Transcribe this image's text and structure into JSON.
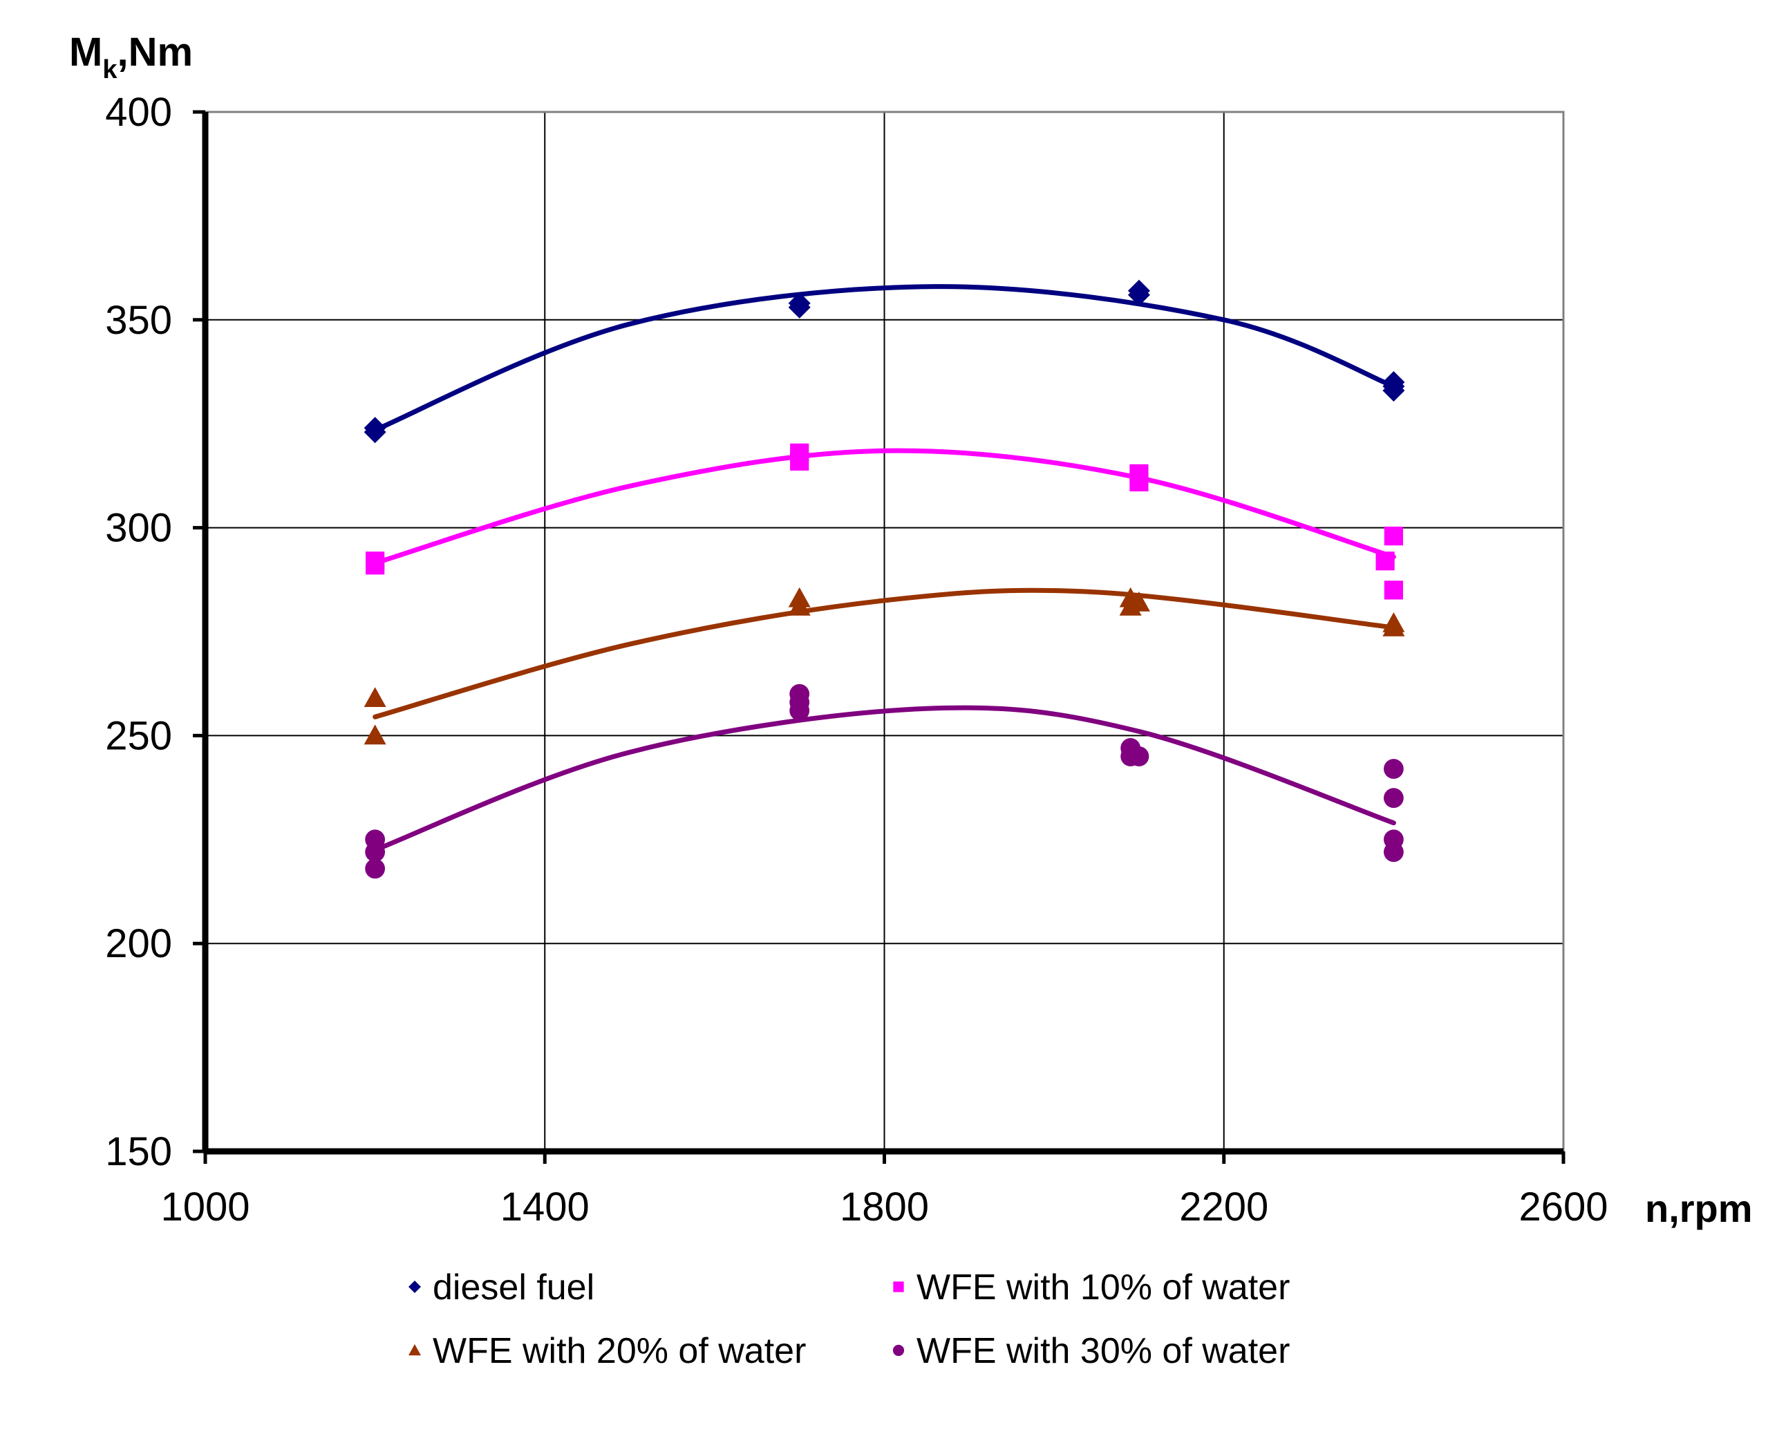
{
  "chart_data": {
    "type": "scatter",
    "ylabel_main": "M",
    "ylabel_sub": "k",
    "ylabel_rest": ",Nm",
    "xlabel": "n,rpm",
    "xlim": [
      1000,
      2600
    ],
    "ylim": [
      150,
      400
    ],
    "x_ticks": [
      "1000",
      "1400",
      "1800",
      "2200",
      "2600"
    ],
    "x_tick_values": [
      1000,
      1400,
      1800,
      2200,
      2600
    ],
    "y_ticks": [
      "400",
      "350",
      "300",
      "250",
      "200",
      "150"
    ],
    "y_tick_values": [
      400,
      350,
      300,
      250,
      200,
      150
    ],
    "grid": true,
    "legend_position": "bottom",
    "series": [
      {
        "name": "diesel fuel",
        "marker": "diamond",
        "color": "#000080",
        "points": [
          [
            1200,
            324
          ],
          [
            1200,
            323
          ],
          [
            1700,
            354
          ],
          [
            1700,
            353
          ],
          [
            2100,
            357
          ],
          [
            2100,
            356
          ],
          [
            2400,
            335
          ],
          [
            2400,
            334
          ],
          [
            2400,
            333
          ]
        ],
        "trend": [
          [
            1200,
            323.5
          ],
          [
            1500,
            349
          ],
          [
            1860,
            358
          ],
          [
            2200,
            350
          ],
          [
            2400,
            334
          ]
        ]
      },
      {
        "name": "WFE with 10% of water",
        "marker": "square",
        "color": "#FF00FF",
        "points": [
          [
            1200,
            292
          ],
          [
            1200,
            291
          ],
          [
            1700,
            318
          ],
          [
            1700,
            316
          ],
          [
            2100,
            313
          ],
          [
            2100,
            311
          ],
          [
            2390,
            292
          ],
          [
            2400,
            298
          ],
          [
            2400,
            285
          ]
        ],
        "trend": [
          [
            1200,
            291.5
          ],
          [
            1500,
            310
          ],
          [
            1800,
            318.5
          ],
          [
            2100,
            312
          ],
          [
            2400,
            293
          ]
        ]
      },
      {
        "name": "WFE with 20% of water",
        "marker": "triangle",
        "color": "#993300",
        "points": [
          [
            1200,
            259
          ],
          [
            1200,
            250
          ],
          [
            1700,
            283
          ],
          [
            1700,
            281
          ],
          [
            2090,
            283
          ],
          [
            2090,
            281
          ],
          [
            2100,
            282
          ],
          [
            2400,
            277
          ],
          [
            2400,
            276
          ]
        ],
        "trend": [
          [
            1200,
            254.5
          ],
          [
            1500,
            272
          ],
          [
            1800,
            282.5
          ],
          [
            2050,
            284.5
          ],
          [
            2400,
            276
          ]
        ]
      },
      {
        "name": "WFE with 30% of water",
        "marker": "circle",
        "color": "#800080",
        "points": [
          [
            1200,
            225
          ],
          [
            1200,
            222
          ],
          [
            1200,
            218
          ],
          [
            1700,
            260
          ],
          [
            1700,
            258
          ],
          [
            1700,
            256
          ],
          [
            2090,
            247
          ],
          [
            2090,
            245
          ],
          [
            2100,
            245
          ],
          [
            2400,
            242
          ],
          [
            2400,
            235
          ],
          [
            2400,
            225
          ],
          [
            2400,
            222
          ]
        ],
        "trend": [
          [
            1200,
            222.5
          ],
          [
            1500,
            246
          ],
          [
            1850,
            256.5
          ],
          [
            2100,
            251
          ],
          [
            2400,
            229
          ]
        ]
      }
    ]
  }
}
